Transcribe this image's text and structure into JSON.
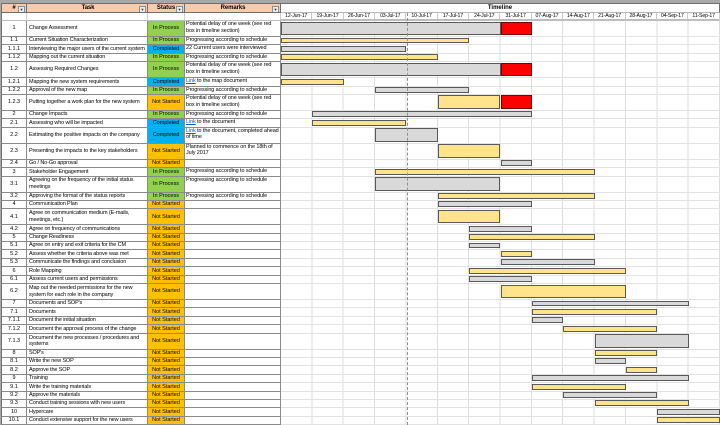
{
  "header": {
    "num": "#",
    "task": "Task",
    "status": "Status",
    "remarks": "Remarks",
    "timeline": "Timeline"
  },
  "timeline_dates": [
    "12-Jun-17",
    "19-Jun-17",
    "26-Jun-17",
    "03-Jul-17",
    "10-Jul-17",
    "17-Jul-17",
    "24-Jul-17",
    "31-Jul-17",
    "07-Aug-17",
    "14-Aug-17",
    "21-Aug-17",
    "28-Aug-17",
    "04-Sep-17",
    "11-Sep-17"
  ],
  "today_line": {
    "between": [
      "03-Jul-17",
      "10-Jul-17"
    ],
    "column_index": 4,
    "color": "#4FA0DC"
  },
  "colors": {
    "header_bg": "#F8CBAD",
    "status": {
      "In Process": "#92D050",
      "Completed": "#00B0F0",
      "Not Started": "#FFC000"
    },
    "bar": {
      "gray": "#D9D9D9",
      "yellow": "#FFE48C",
      "red": "#FF0000"
    },
    "bar_border": "#595959",
    "link": "#0563C1"
  },
  "rows": [
    {
      "num": "1",
      "task": "Change Assessment",
      "status": "In Process",
      "remark": "Potential delay of one week (see red box in timeline section)",
      "link": false,
      "tall": true,
      "bar": {
        "color": "gray",
        "start": 0,
        "span": 7
      },
      "red": {
        "start": 7,
        "span": 1
      }
    },
    {
      "num": "1.1",
      "task": "Current Situation Characterization",
      "status": "In Process",
      "remark": "Progressing according to schedule",
      "link": false,
      "tall": false,
      "bar": {
        "color": "yellow",
        "start": 0,
        "span": 6
      }
    },
    {
      "num": "1.1.1",
      "task": "Interviewing the major users of the current system",
      "status": "Completed",
      "remark": "22 Current users were interviewed",
      "link": false,
      "tall": false,
      "bar": {
        "color": "gray",
        "start": 0,
        "span": 4
      }
    },
    {
      "num": "1.1.2",
      "task": "Mapping out the current situation",
      "status": "In Process",
      "remark": "Progressing according to schedule",
      "link": false,
      "tall": false,
      "bar": {
        "color": "yellow",
        "start": 0,
        "span": 5
      }
    },
    {
      "num": "1.2",
      "task": "Assessing Required Changes",
      "status": "In Process",
      "remark": "Potential delay of one week (see red box in timeline section)",
      "link": false,
      "tall": true,
      "bar": {
        "color": "gray",
        "start": 0,
        "span": 7
      },
      "red": {
        "start": 7,
        "span": 1
      }
    },
    {
      "num": "1.2.1",
      "task": "Mapping the new system requirements",
      "status": "Completed",
      "remark": "Link to the map document",
      "link": true,
      "tall": false,
      "bar": {
        "color": "yellow",
        "start": 0,
        "span": 2
      }
    },
    {
      "num": "1.2.2",
      "task": "Approval of the new map",
      "status": "In Process",
      "remark": "Progressing according to schedule",
      "link": false,
      "tall": false,
      "bar": {
        "color": "gray",
        "start": 3,
        "span": 3
      }
    },
    {
      "num": "1.2.3",
      "task": "Putting together a work plan for the new system",
      "status": "Not Started",
      "remark": "Potential delay of one week (see red box in timeline section)",
      "link": false,
      "tall": true,
      "bar": {
        "color": "yellow",
        "start": 5,
        "span": 2
      },
      "red": {
        "start": 7,
        "span": 1
      }
    },
    {
      "num": "2",
      "task": "Change Impacts",
      "status": "In Process",
      "remark": "Progressing according to schedule",
      "link": false,
      "tall": false,
      "bar": {
        "color": "gray",
        "start": 1,
        "span": 7
      }
    },
    {
      "num": "2.1",
      "task": "Assessing who will be impacted",
      "status": "Completed",
      "remark": "Link to the document",
      "link": true,
      "tall": false,
      "bar": {
        "color": "yellow",
        "start": 1,
        "span": 3
      }
    },
    {
      "num": "2.2",
      "task": "Estimating the positive impacts on the company",
      "status": "Completed",
      "remark": "Link to the document, completed ahead of time",
      "link": true,
      "tall": true,
      "bar": {
        "color": "gray",
        "start": 3,
        "span": 2
      }
    },
    {
      "num": "2.3",
      "task": "Presenting the impacts to the key stakeholders",
      "status": "Not Started",
      "remark": "Planned to commence on the 18th of July 2017",
      "link": false,
      "tall": true,
      "bar": {
        "color": "yellow",
        "start": 5,
        "span": 2
      }
    },
    {
      "num": "2.4",
      "task": "Go / No-Go approval",
      "status": "Not Started",
      "remark": "",
      "link": false,
      "tall": false,
      "bar": {
        "color": "gray",
        "start": 7,
        "span": 1
      }
    },
    {
      "num": "3",
      "task": "Stakeholder Engagement",
      "status": "In Process",
      "remark": "Progressing according to schedule",
      "link": false,
      "tall": false,
      "bar": {
        "color": "yellow",
        "start": 3,
        "span": 7
      }
    },
    {
      "num": "3.1",
      "task": "Agreeing on the frequency of the initial status meetings",
      "status": "In Process",
      "remark": "Progressing according to schedule",
      "link": false,
      "tall": true,
      "bar": {
        "color": "gray",
        "start": 3,
        "span": 4
      }
    },
    {
      "num": "3.2",
      "task": "Approving the format of the status reports",
      "status": "In Process",
      "remark": "Progressing according to schedule",
      "link": false,
      "tall": false,
      "bar": {
        "color": "yellow",
        "start": 5,
        "span": 5
      }
    },
    {
      "num": "4",
      "task": "Communication Plan",
      "status": "Not Started",
      "remark": "",
      "link": false,
      "tall": false,
      "bar": {
        "color": "gray",
        "start": 5,
        "span": 3
      }
    },
    {
      "num": "4.1",
      "task": "Agree on communication medium (E-mails, meetings, etc.)",
      "status": "Not Started",
      "remark": "",
      "link": false,
      "tall": true,
      "bar": {
        "color": "yellow",
        "start": 5,
        "span": 2
      }
    },
    {
      "num": "4.2",
      "task": "Agree on frequency of communications",
      "status": "Not Started",
      "remark": "",
      "link": false,
      "tall": false,
      "bar": {
        "color": "gray",
        "start": 6,
        "span": 2
      }
    },
    {
      "num": "5",
      "task": "Change Readiness",
      "status": "Not Started",
      "remark": "",
      "link": false,
      "tall": false,
      "bar": {
        "color": "yellow",
        "start": 6,
        "span": 4
      }
    },
    {
      "num": "5.1",
      "task": "Agree on entry and exit criteria for the CM",
      "status": "Not Started",
      "remark": "",
      "link": false,
      "tall": false,
      "bar": {
        "color": "gray",
        "start": 6,
        "span": 1
      }
    },
    {
      "num": "5.2",
      "task": "Assess whether the criteria above was met",
      "status": "Not Started",
      "remark": "",
      "link": false,
      "tall": false,
      "bar": {
        "color": "yellow",
        "start": 7,
        "span": 1
      }
    },
    {
      "num": "5.3",
      "task": "Communicate the findings and conclusion",
      "status": "Not Started",
      "remark": "",
      "link": false,
      "tall": false,
      "bar": {
        "color": "gray",
        "start": 7,
        "span": 3
      }
    },
    {
      "num": "6",
      "task": "Role Mapping",
      "status": "Not Started",
      "remark": "",
      "link": false,
      "tall": false,
      "bar": {
        "color": "yellow",
        "start": 6,
        "span": 5
      }
    },
    {
      "num": "6.1",
      "task": "Assess current users and permissions",
      "status": "Not Started",
      "remark": "",
      "link": false,
      "tall": false,
      "bar": {
        "color": "gray",
        "start": 6,
        "span": 2
      }
    },
    {
      "num": "6.2",
      "task": "Map out the needed permissions for the new system for each role in the company",
      "status": "Not Started",
      "remark": "",
      "link": false,
      "tall": true,
      "bar": {
        "color": "yellow",
        "start": 7,
        "span": 4
      }
    },
    {
      "num": "7",
      "task": "Documents and SOP's",
      "status": "Not Started",
      "remark": "",
      "link": false,
      "tall": false,
      "bar": {
        "color": "gray",
        "start": 8,
        "span": 5
      }
    },
    {
      "num": "7.1",
      "task": "Documents",
      "status": "Not Started",
      "remark": "",
      "link": false,
      "tall": false,
      "bar": {
        "color": "yellow",
        "start": 8,
        "span": 4
      }
    },
    {
      "num": "7.1.1",
      "task": "Document the initial situation",
      "status": "Not Started",
      "remark": "",
      "link": false,
      "tall": false,
      "bar": {
        "color": "gray",
        "start": 8,
        "span": 1
      }
    },
    {
      "num": "7.1.2",
      "task": "Document the approval process of the change",
      "status": "Not Started",
      "remark": "",
      "link": false,
      "tall": false,
      "bar": {
        "color": "yellow",
        "start": 9,
        "span": 3
      }
    },
    {
      "num": "7.1.3",
      "task": "Document the new processes / procedures and systems",
      "status": "Not Started",
      "remark": "",
      "link": false,
      "tall": true,
      "bar": {
        "color": "gray",
        "start": 10,
        "span": 3
      }
    },
    {
      "num": "8",
      "task": "SOP's",
      "status": "Not Started",
      "remark": "",
      "link": false,
      "tall": false,
      "bar": {
        "color": "yellow",
        "start": 10,
        "span": 2
      }
    },
    {
      "num": "8.1",
      "task": "Write the new SOP",
      "status": "Not Started",
      "remark": "",
      "link": false,
      "tall": false,
      "bar": {
        "color": "gray",
        "start": 10,
        "span": 1
      }
    },
    {
      "num": "8.2",
      "task": "Approve the SOP",
      "status": "Not Started",
      "remark": "",
      "link": false,
      "tall": false,
      "bar": {
        "color": "yellow",
        "start": 11,
        "span": 1
      }
    },
    {
      "num": "9",
      "task": "Training",
      "status": "Not Started",
      "remark": "",
      "link": false,
      "tall": false,
      "bar": {
        "color": "gray",
        "start": 8,
        "span": 5
      }
    },
    {
      "num": "9.1",
      "task": "Write the training materials",
      "status": "Not Started",
      "remark": "",
      "link": false,
      "tall": false,
      "bar": {
        "color": "yellow",
        "start": 8,
        "span": 3
      }
    },
    {
      "num": "9.2",
      "task": "Approve the materials",
      "status": "Not Started",
      "remark": "",
      "link": false,
      "tall": false,
      "bar": {
        "color": "gray",
        "start": 9,
        "span": 3
      }
    },
    {
      "num": "9.3",
      "task": "Conduct training sessions with new users",
      "status": "Not Started",
      "remark": "",
      "link": false,
      "tall": false,
      "bar": {
        "color": "yellow",
        "start": 10,
        "span": 3
      }
    },
    {
      "num": "10",
      "task": "Hypercare",
      "status": "Not Started",
      "remark": "",
      "link": false,
      "tall": false,
      "bar": {
        "color": "gray",
        "start": 12,
        "span": 2
      }
    },
    {
      "num": "10.1",
      "task": "Conduct extensive support for the new users",
      "status": "Not Started",
      "remark": "",
      "link": false,
      "tall": false,
      "bar": {
        "color": "yellow",
        "start": 12,
        "span": 2
      }
    }
  ]
}
